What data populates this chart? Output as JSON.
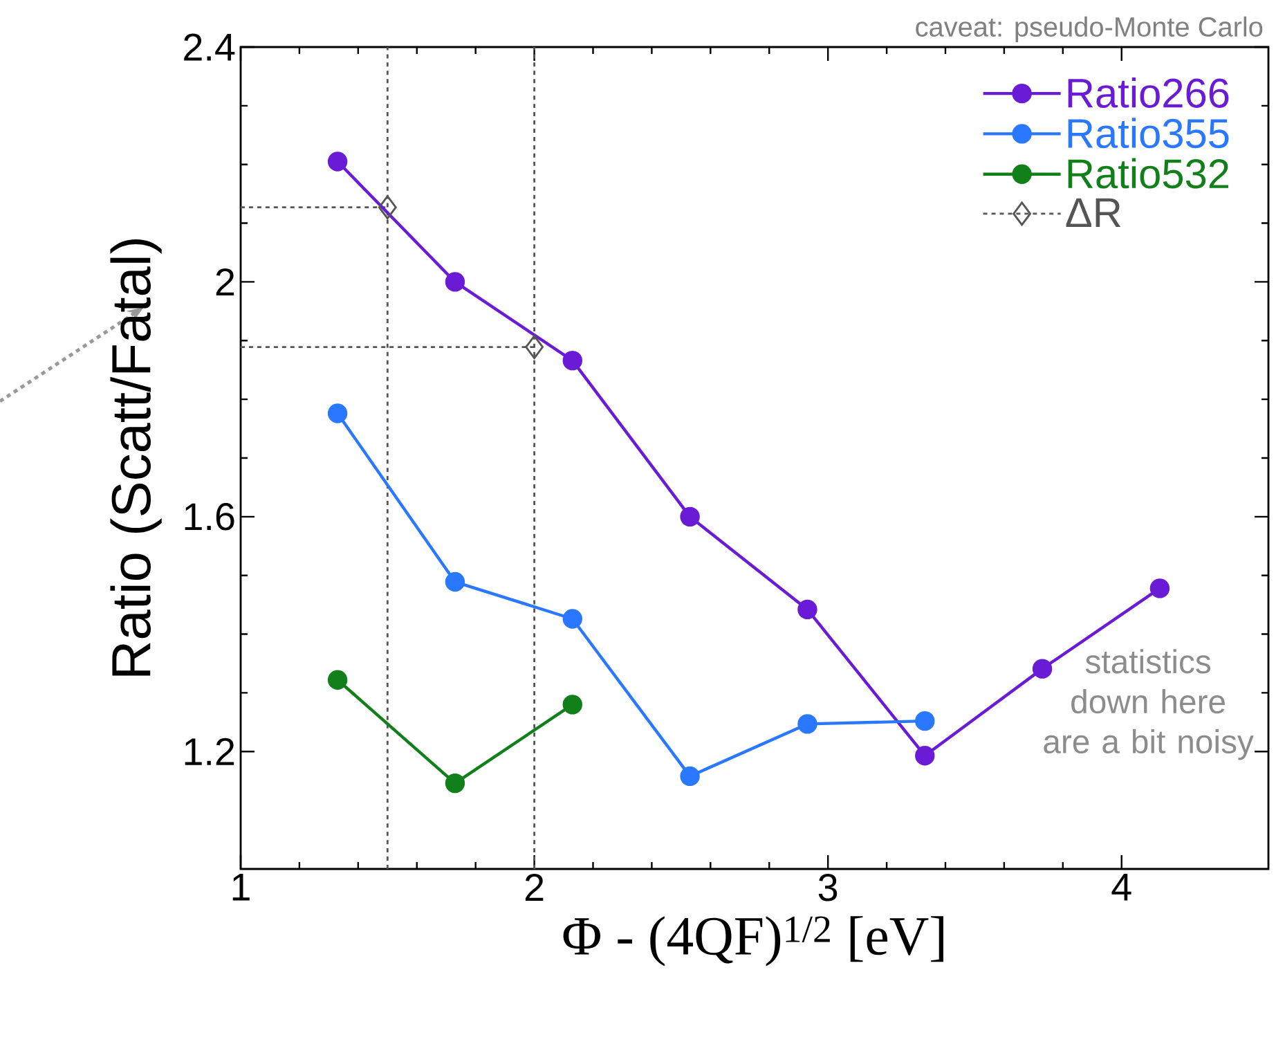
{
  "chart_data": {
    "type": "line",
    "xlabel": "Φ - (4QF)$^{1/2}$ [eV]",
    "ylabel": "Ratio (Scatt/Fatal)",
    "xlim": [
      1,
      4.5
    ],
    "ylim": [
      1.0,
      2.4
    ],
    "xticks": [
      1,
      2,
      3,
      4
    ],
    "yticks": [
      1.2,
      1.6,
      {
        "value": 2.0,
        "label": "2"
      },
      2.4
    ],
    "marker": "circle",
    "line_style": "solid",
    "legend": "top right",
    "grid": false,
    "series": [
      {
        "name": "Ratio266",
        "color": "#6a1bd6",
        "x": [
          1.33,
          1.73,
          2.13,
          2.53,
          2.93,
          3.33,
          3.73,
          4.13
        ],
        "values": [
          2.205,
          2.0,
          1.866,
          1.6,
          1.442,
          1.193,
          1.341,
          1.478
        ]
      },
      {
        "name": "Ratio355",
        "color": "#2a78ff",
        "x": [
          1.33,
          1.73,
          2.13,
          2.53,
          2.93,
          3.33
        ],
        "values": [
          1.776,
          1.489,
          1.426,
          1.158,
          1.247,
          1.252
        ]
      },
      {
        "name": "Ratio532",
        "color": "#12801a",
        "x": [
          1.33,
          1.73,
          2.13
        ],
        "values": [
          1.322,
          1.146,
          1.28
        ]
      },
      {
        "name": "ΔR",
        "type": "scatter",
        "marker": "diamond",
        "line_style": "dashed",
        "color": "#555555",
        "x": [
          1.5,
          2.0
        ],
        "values": [
          2.127,
          1.889
        ]
      }
    ],
    "ref_lines": [
      {
        "axis": "x",
        "value": 1.5,
        "color": "#555555",
        "line_style": "dashed"
      },
      {
        "axis": "x",
        "value": 2.0,
        "color": "#555555",
        "line_style": "dashed"
      },
      {
        "axis": "y",
        "value": 2.127,
        "color": "#555555",
        "line_style": "dashed"
      },
      {
        "axis": "y",
        "value": 1.889,
        "color": "#555555",
        "line_style": "dashed"
      }
    ],
    "annotations": [
      "caveat:  pseudo-Monte Carlo",
      "statistics down here are a bit noisy"
    ]
  }
}
